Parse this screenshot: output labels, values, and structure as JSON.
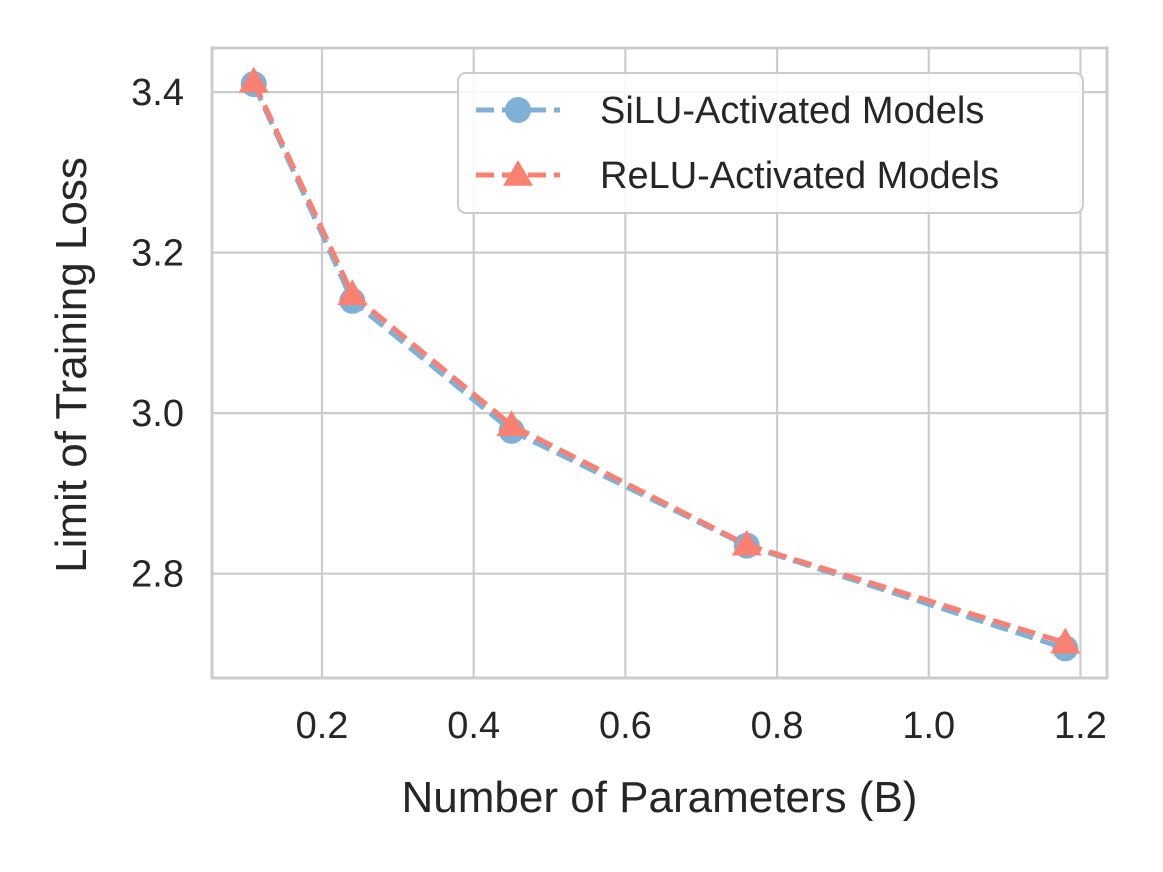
{
  "chart_data": {
    "type": "line",
    "xlabel": "Number of Parameters (B)",
    "ylabel": "Limit of Training Loss",
    "xlim": [
      0.055,
      1.235
    ],
    "ylim": [
      2.67,
      3.455
    ],
    "xticks": [
      0.2,
      0.4,
      0.6,
      0.8,
      1.0,
      1.2
    ],
    "xtick_labels": [
      "0.2",
      "0.4",
      "0.6",
      "0.8",
      "1.0",
      "1.2"
    ],
    "yticks": [
      2.8,
      3.0,
      3.2,
      3.4
    ],
    "ytick_labels": [
      "2.8",
      "3.0",
      "3.2",
      "3.4"
    ],
    "grid": true,
    "legend_position": "top-right",
    "series": [
      {
        "name": "SiLU-Activated Models",
        "marker": "circle",
        "line_style": "dashed",
        "color": "#7fb0d5",
        "x": [
          0.11,
          0.24,
          0.45,
          0.76,
          1.18
        ],
        "y": [
          3.41,
          3.14,
          2.978,
          2.835,
          2.707
        ]
      },
      {
        "name": "ReLU-Activated Models",
        "marker": "triangle",
        "line_style": "dashed",
        "color": "#fa8072",
        "x": [
          0.11,
          0.24,
          0.45,
          0.76,
          1.18
        ],
        "y": [
          3.413,
          3.148,
          2.985,
          2.836,
          2.714
        ]
      }
    ]
  }
}
